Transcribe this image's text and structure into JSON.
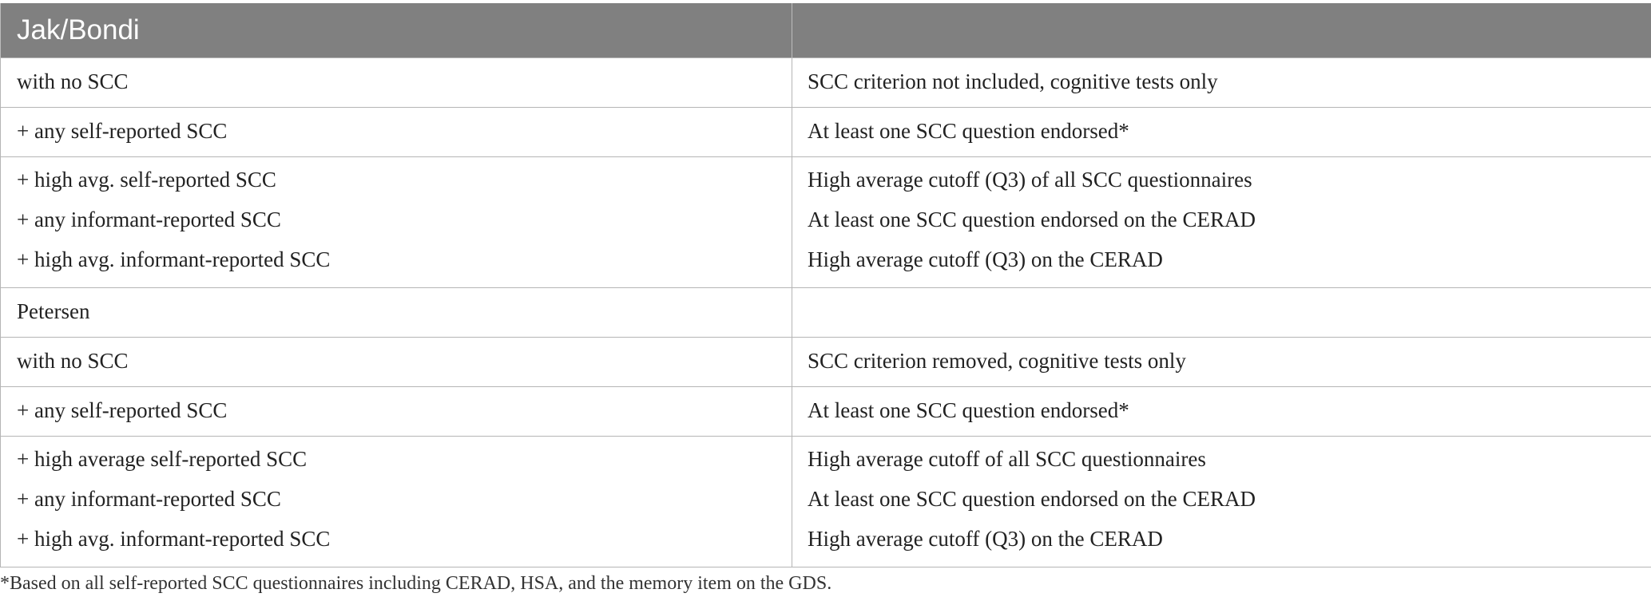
{
  "table": {
    "header": [
      "Jak/Bondi",
      ""
    ],
    "rows": [
      {
        "left": [
          "with no SCC"
        ],
        "right": [
          "SCC criterion not included, cognitive tests only"
        ]
      },
      {
        "left": [
          "+ any self-reported SCC"
        ],
        "right": [
          "At least one SCC question endorsed*"
        ]
      },
      {
        "left": [
          "+ high avg. self-reported SCC",
          "+ any informant-reported SCC",
          "+ high avg. informant-reported SCC"
        ],
        "right": [
          "High average cutoff (Q3) of all SCC questionnaires",
          "At least one SCC question endorsed on the CERAD",
          "High average cutoff (Q3) on the CERAD"
        ]
      },
      {
        "left": [
          "Petersen"
        ],
        "right": [
          ""
        ]
      },
      {
        "left": [
          "with no SCC"
        ],
        "right": [
          "SCC criterion removed, cognitive tests only"
        ]
      },
      {
        "left": [
          "+ any self-reported SCC"
        ],
        "right": [
          "At least one SCC question endorsed*"
        ]
      },
      {
        "left": [
          "+ high average self-reported SCC",
          "+ any informant-reported SCC",
          "+ high avg. informant-reported SCC"
        ],
        "right": [
          "High average cutoff of all SCC questionnaires",
          "At least one SCC question endorsed on the CERAD",
          "High average cutoff (Q3) on the CERAD"
        ]
      }
    ]
  },
  "footnote": "*Based on all self-reported SCC questionnaires including CERAD, HSA, and the memory item on the GDS."
}
